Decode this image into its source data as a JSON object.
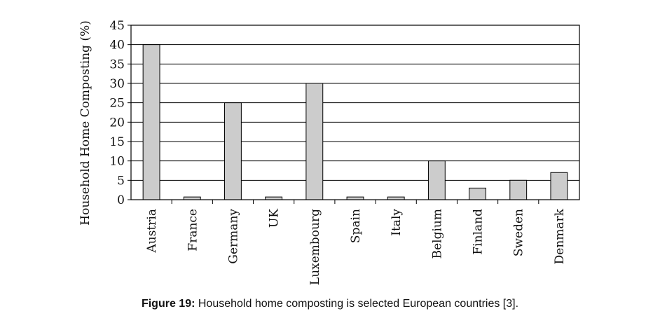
{
  "chart_data": {
    "type": "bar",
    "ylabel": "Household Home Composting (%)",
    "xlabel": "",
    "ylim": [
      0,
      45
    ],
    "yticks": [
      0,
      5,
      10,
      15,
      20,
      25,
      30,
      35,
      40,
      45
    ],
    "grid": "horizontal",
    "categories": [
      "Austria",
      "France",
      "Germany",
      "UK",
      "Luxembourg",
      "Spain",
      "Italy",
      "Belgium",
      "Finland",
      "Sweden",
      "Denmark"
    ],
    "values": [
      40,
      0.7,
      25,
      0.7,
      30,
      0.7,
      0.7,
      10,
      3,
      5,
      7
    ],
    "bar_color": "#cccccc"
  },
  "caption": {
    "label": "Figure 19:",
    "text": " Household home composting is selected European countries [3]."
  }
}
